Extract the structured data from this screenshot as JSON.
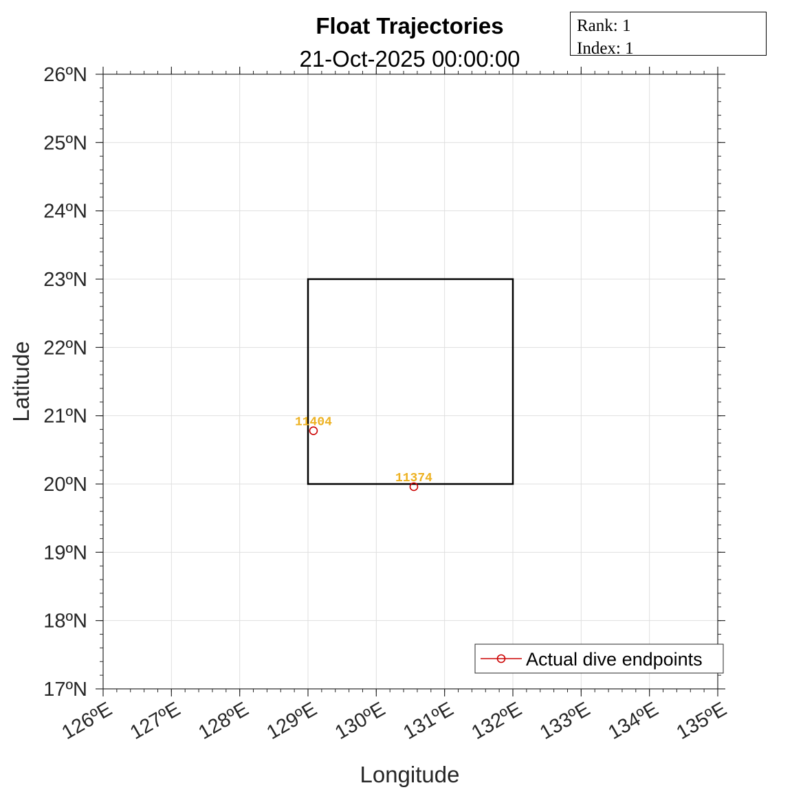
{
  "title": "Float Trajectories",
  "subtitle": "21-Oct-2025 00:00:00",
  "info_box": {
    "rank_label": "Rank:",
    "rank_value": "1",
    "index_label": "Index:",
    "index_value": "1"
  },
  "chart_data": {
    "type": "scatter",
    "xlabel": "Longitude",
    "ylabel": "Latitude",
    "xlim": [
      126,
      135
    ],
    "ylim": [
      17,
      26
    ],
    "x_ticks": [
      126,
      127,
      128,
      129,
      130,
      131,
      132,
      133,
      134,
      135
    ],
    "y_ticks": [
      17,
      18,
      19,
      20,
      21,
      22,
      23,
      24,
      25,
      26
    ],
    "x_tick_labels": [
      "126ºE",
      "127ºE",
      "128ºE",
      "129ºE",
      "130ºE",
      "131ºE",
      "132ºE",
      "133ºE",
      "134ºE",
      "135ºE"
    ],
    "y_tick_labels": [
      "17ºN",
      "18ºN",
      "19ºN",
      "20ºN",
      "21ºN",
      "22ºN",
      "23ºN",
      "24ºN",
      "25ºN",
      "26ºN"
    ],
    "grid": true,
    "region_box": {
      "lon": [
        129,
        132
      ],
      "lat": [
        20,
        23
      ],
      "color": "#000000"
    },
    "series": [
      {
        "name": "Actual dive endpoints",
        "color": "#CC0000",
        "marker": "circle",
        "points": [
          {
            "label": "11404",
            "lon": 129.08,
            "lat": 20.78
          },
          {
            "label": "11374",
            "lon": 130.55,
            "lat": 19.96
          }
        ]
      }
    ],
    "point_label_color": "#EDB120",
    "legend": {
      "position": "bottom-right",
      "entries": [
        "Actual dive endpoints"
      ]
    }
  }
}
